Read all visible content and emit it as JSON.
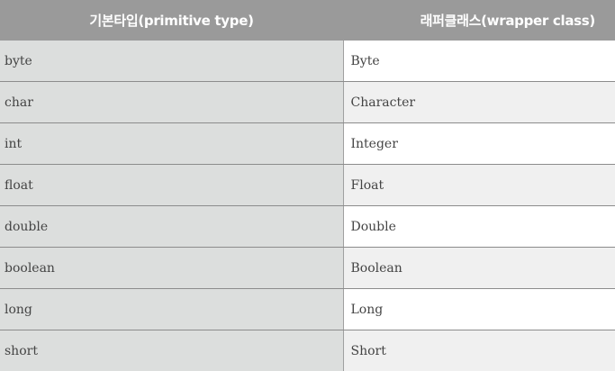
{
  "table": {
    "headers": [
      "기본타입(primitive type)",
      "래퍼클래스(wrapper class)"
    ],
    "rows": [
      [
        "byte",
        "Byte"
      ],
      [
        "char",
        "Character"
      ],
      [
        "int",
        "Integer"
      ],
      [
        "float",
        "Float"
      ],
      [
        "double",
        "Double"
      ],
      [
        "boolean",
        "Boolean"
      ],
      [
        "long",
        "Long"
      ],
      [
        "short",
        "Short"
      ]
    ]
  },
  "colors": {
    "header_bg": "#9a9a9a",
    "header_text": "#ffffff",
    "left_col_bg": "#dcdedd",
    "right_col_alt_bg": "#f0f0f0",
    "cell_text": "#444444",
    "row_border": "#8c8c8c"
  }
}
